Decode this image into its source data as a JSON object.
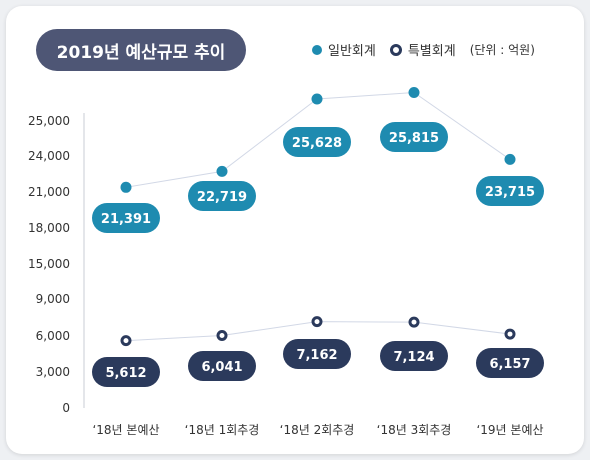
{
  "title": "2019년 예산규모 추이",
  "legend": {
    "general": "일반회계",
    "special": "특별회계",
    "unit": "(단위 : 억원)"
  },
  "colors": {
    "general": "#1e8bb0",
    "special": "#2b3a5c",
    "title_bg": "#4e5675",
    "line": "#d2d8e6"
  },
  "chart_data": {
    "type": "line",
    "title": "2019년 예산규모 추이",
    "unit": "억원",
    "categories": [
      "‘18년 본예산",
      "‘18년 1회추경",
      "‘18년 2회추경",
      "‘18년 3회추경",
      "‘19년 본예산"
    ],
    "y_ticks": [
      "0",
      "3,000",
      "6,000",
      "9,000",
      "15,000",
      "18,000",
      "21,000",
      "24,000",
      "25,000"
    ],
    "series": [
      {
        "name": "일반회계",
        "values": [
          21391,
          22719,
          25628,
          25815,
          23715
        ],
        "labels": [
          "21,391",
          "22,719",
          "25,628",
          "25,815",
          "23,715"
        ]
      },
      {
        "name": "특별회계",
        "values": [
          5612,
          6041,
          7162,
          7124,
          6157
        ],
        "labels": [
          "5,612",
          "6,041",
          "7,162",
          "7,124",
          "6,157"
        ]
      }
    ],
    "grid": false,
    "legend_position": "top-right"
  }
}
